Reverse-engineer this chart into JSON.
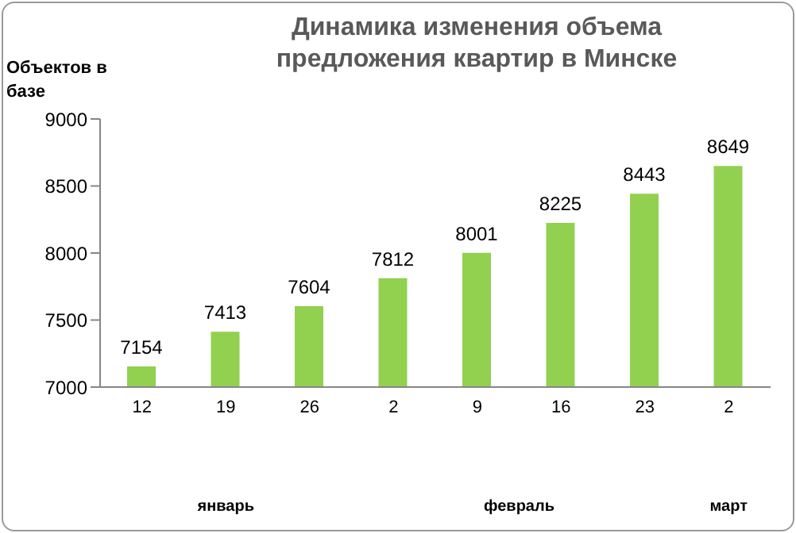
{
  "chart_data": {
    "type": "bar",
    "title": "Динамика изменения объема предложения квартир в Минске",
    "ylabel": "Объектов в базе",
    "categories": [
      "12",
      "19",
      "26",
      "2",
      "9",
      "16",
      "23",
      "2"
    ],
    "values": [
      7154,
      7413,
      7604,
      7812,
      8001,
      8225,
      8443,
      8649
    ],
    "color": "#92d050",
    "ylim": [
      7000,
      9000
    ],
    "yticks": [
      7000,
      7500,
      8000,
      8500,
      9000
    ],
    "grid": false,
    "data_labels": true,
    "annotations": [
      "январь",
      "февраль",
      "март"
    ]
  }
}
